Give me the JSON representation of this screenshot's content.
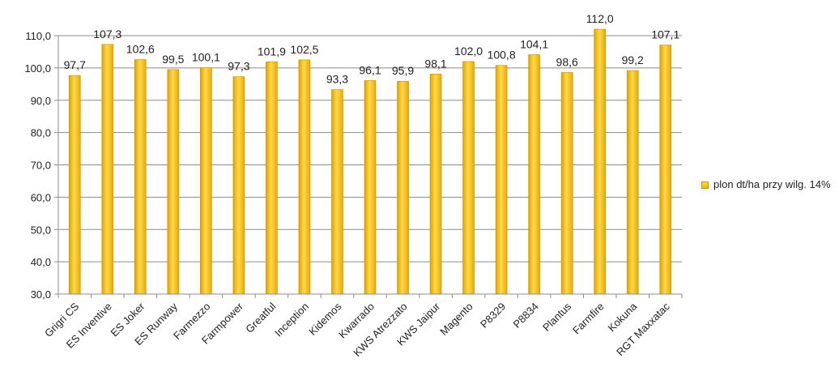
{
  "chart_data": {
    "type": "bar",
    "categories": [
      "Grigri CS",
      "ES Inventive",
      "ES Joker",
      "ES Runway",
      "Farmezzo",
      "Farmpower",
      "Greatful",
      "Inception",
      "Kidemos",
      "Kwarrado",
      "KWS Atrezzato",
      "KWS Jaipur",
      "Magento",
      "P8329",
      "P8834",
      "Plantus",
      "Farmfire",
      "Kokuna",
      "RGT Maxxatac"
    ],
    "series": [
      {
        "name": "plon dt/ha przy wilg. 14%",
        "values": [
          97.7,
          107.3,
          102.6,
          99.5,
          100.1,
          97.3,
          101.9,
          102.5,
          93.3,
          96.1,
          95.9,
          98.1,
          102.0,
          100.8,
          104.1,
          98.6,
          112.0,
          99.2,
          107.1
        ],
        "labels": [
          "97,7",
          "107,3",
          "102,6",
          "99,5",
          "100,1",
          "97,3",
          "101,9",
          "102,5",
          "93,3",
          "96,1",
          "95,9",
          "98,1",
          "102,0",
          "100,8",
          "104,1",
          "98,6",
          "112,0",
          "99,2",
          "107,1"
        ]
      }
    ],
    "ylim": [
      30,
      110
    ],
    "yticks": [
      "30,0",
      "40,0",
      "50,0",
      "60,0",
      "70,0",
      "80,0",
      "90,0",
      "100,0",
      "110,0"
    ],
    "grid": true,
    "legend_position": "right",
    "colors": {
      "bar": "#f5bd16",
      "bar_light": "#ffe36b",
      "bar_dark": "#d99a00",
      "grid": "#8c8c8c"
    }
  }
}
